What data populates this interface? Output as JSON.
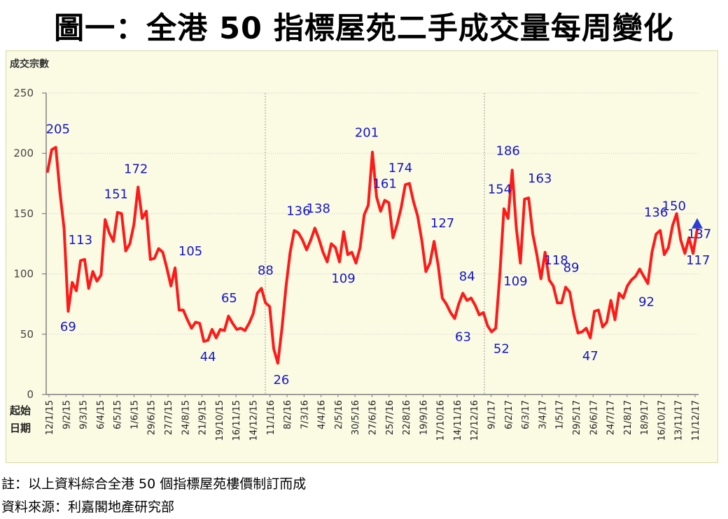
{
  "title": "圖一：全港 50 指標屋苑二手成交量每周變化",
  "notes": {
    "note": "註：以上資料綜合全港 50 個指標屋苑樓價制訂而成",
    "source": "資料來源：利嘉閣地產研究部"
  },
  "colors": {
    "line": "#ff1a1a",
    "label": "#1414c8",
    "background": "#fbfbe4",
    "grid": "#c8c8c8",
    "marker": "#2a3fd8"
  },
  "chart_data": {
    "type": "line",
    "title": "圖一：全港 50 指標屋苑二手成交量每周變化",
    "ylabel": "成交宗數",
    "xlabel_lines": [
      "起始",
      "日期"
    ],
    "ylim": [
      0,
      250
    ],
    "yticks": [
      0,
      50,
      100,
      150,
      200,
      250
    ],
    "grid": "dotted horizontal, dotted vertical year separators",
    "x_tick_labels": [
      "12/1/15",
      "9/2/15",
      "9/3/15",
      "6/4/15",
      "6/5/15",
      "1/6/15",
      "29/6/15",
      "27/7/15",
      "24/8/15",
      "21/9/15",
      "19/10/15",
      "16/11/15",
      "14/12/15",
      "11/1/16",
      "8/2/16",
      "7/3/16",
      "4/4/16",
      "2/5/16",
      "30/5/16",
      "27/6/16",
      "25/7/16",
      "22/8/16",
      "19/9/16",
      "17/10/16",
      "14/11/16",
      "12/12/16",
      "9/1/17",
      "6/2/17",
      "6/3/17",
      "3/4/17",
      "1/5/17",
      "29/5/17",
      "26/6/17",
      "24/7/17",
      "21/8/17",
      "18/9/17",
      "16/10/17",
      "13/11/17",
      "11/12/17"
    ],
    "series": [
      {
        "values": [
          185,
          203,
          205,
          168,
          138,
          69,
          93,
          86,
          111,
          112,
          88,
          102,
          94,
          99,
          145,
          134,
          127,
          151,
          150,
          119,
          125,
          141,
          172,
          146,
          152,
          112,
          113,
          121,
          118,
          105,
          90,
          105,
          70,
          70,
          62,
          55,
          60,
          59,
          44,
          45,
          54,
          47,
          54,
          53,
          65,
          59,
          54,
          55,
          53,
          59,
          67,
          84,
          88,
          76,
          73,
          38,
          26,
          55,
          90,
          118,
          136,
          134,
          128,
          120,
          128,
          138,
          129,
          118,
          110,
          125,
          122,
          110,
          135,
          116,
          118,
          109,
          122,
          149,
          157,
          201,
          164,
          152,
          161,
          159,
          130,
          141,
          155,
          174,
          175,
          160,
          148,
          128,
          102,
          109,
          127,
          107,
          80,
          75,
          68,
          63,
          75,
          84,
          78,
          80,
          74,
          66,
          68,
          57,
          52,
          55,
          100,
          154,
          146,
          186,
          138,
          109,
          162,
          163,
          133,
          116,
          96,
          118,
          95,
          90,
          76,
          76,
          89,
          85,
          66,
          51,
          52,
          55,
          47,
          69,
          70,
          56,
          60,
          78,
          62,
          84,
          80,
          90,
          95,
          98,
          104,
          98,
          92,
          118,
          133,
          136,
          116,
          122,
          140,
          150,
          128,
          117,
          130,
          117,
          137
        ]
      }
    ],
    "annotations": [
      {
        "text": "205",
        "value": 205
      },
      {
        "text": "69",
        "value": 69
      },
      {
        "text": "113",
        "value": 113
      },
      {
        "text": "151",
        "value": 151
      },
      {
        "text": "172",
        "value": 172
      },
      {
        "text": "105",
        "value": 105
      },
      {
        "text": "44",
        "value": 44
      },
      {
        "text": "65",
        "value": 65
      },
      {
        "text": "88",
        "value": 88
      },
      {
        "text": "26",
        "value": 26
      },
      {
        "text": "136",
        "value": 136
      },
      {
        "text": "138",
        "value": 138
      },
      {
        "text": "109",
        "value": 109
      },
      {
        "text": "201",
        "value": 201
      },
      {
        "text": "161",
        "value": 161
      },
      {
        "text": "174",
        "value": 174
      },
      {
        "text": "127",
        "value": 127
      },
      {
        "text": "63",
        "value": 63
      },
      {
        "text": "84",
        "value": 84
      },
      {
        "text": "52",
        "value": 52
      },
      {
        "text": "154",
        "value": 154
      },
      {
        "text": "186",
        "value": 186
      },
      {
        "text": "109",
        "value": 109
      },
      {
        "text": "163",
        "value": 163
      },
      {
        "text": "118",
        "value": 118
      },
      {
        "text": "89",
        "value": 89
      },
      {
        "text": "47",
        "value": 47
      },
      {
        "text": "92",
        "value": 92
      },
      {
        "text": "136",
        "value": 136
      },
      {
        "text": "150",
        "value": 150
      },
      {
        "text": "137",
        "value": 137
      },
      {
        "text": "117",
        "value": 117
      }
    ],
    "latest_marker": {
      "shape": "triangle-up",
      "value": 137
    }
  }
}
